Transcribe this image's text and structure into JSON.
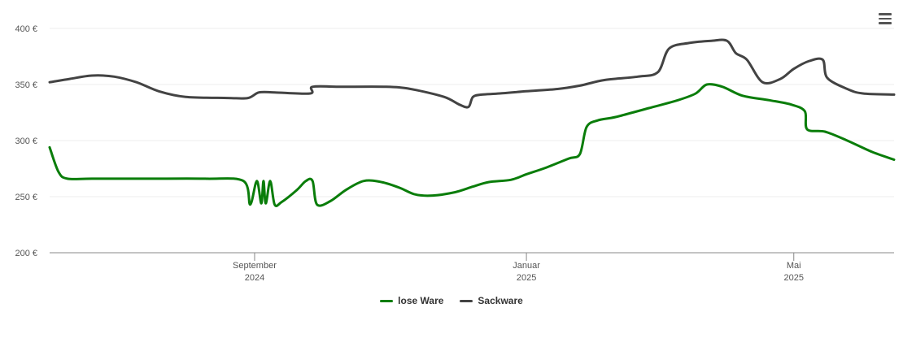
{
  "chart_data": {
    "type": "line",
    "title": "",
    "xlabel": "",
    "ylabel": "",
    "ylim": [
      200,
      400
    ],
    "y_ticks": [
      "200 €",
      "250 €",
      "300 €",
      "350 €",
      "400 €"
    ],
    "y_tick_values": [
      200,
      250,
      300,
      350,
      400
    ],
    "x_range": [
      "2024-06-01",
      "2025-06-15"
    ],
    "x_ticks": [
      {
        "date": "2024-09-01",
        "month": "September",
        "year": "2024"
      },
      {
        "date": "2025-01-01",
        "month": "Januar",
        "year": "2025"
      },
      {
        "date": "2025-05-01",
        "month": "Mai",
        "year": "2025"
      }
    ],
    "grid": true,
    "legend_position": "bottom-center",
    "series": [
      {
        "name": "lose Ware",
        "color": "#0a7d0a",
        "points": [
          [
            "2024-06-01",
            294
          ],
          [
            "2024-06-05",
            272
          ],
          [
            "2024-06-09",
            266
          ],
          [
            "2024-06-20",
            266
          ],
          [
            "2024-07-15",
            266
          ],
          [
            "2024-08-10",
            266
          ],
          [
            "2024-08-27",
            264
          ],
          [
            "2024-08-30",
            243
          ],
          [
            "2024-09-02",
            264
          ],
          [
            "2024-09-04",
            244
          ],
          [
            "2024-09-05",
            264
          ],
          [
            "2024-09-06",
            244
          ],
          [
            "2024-09-08",
            264
          ],
          [
            "2024-09-10",
            243
          ],
          [
            "2024-09-13",
            245
          ],
          [
            "2024-09-20",
            256
          ],
          [
            "2024-09-24",
            264
          ],
          [
            "2024-09-27",
            264
          ],
          [
            "2024-09-29",
            243
          ],
          [
            "2024-10-05",
            246
          ],
          [
            "2024-10-12",
            256
          ],
          [
            "2024-10-20",
            264
          ],
          [
            "2024-10-28",
            263
          ],
          [
            "2024-11-05",
            258
          ],
          [
            "2024-11-12",
            252
          ],
          [
            "2024-11-20",
            251
          ],
          [
            "2024-11-30",
            254
          ],
          [
            "2024-12-08",
            259
          ],
          [
            "2024-12-15",
            263
          ],
          [
            "2024-12-25",
            265
          ],
          [
            "2025-01-01",
            270
          ],
          [
            "2025-01-10",
            276
          ],
          [
            "2025-01-20",
            284
          ],
          [
            "2025-01-25",
            288
          ],
          [
            "2025-01-28",
            312
          ],
          [
            "2025-02-02",
            318
          ],
          [
            "2025-02-10",
            321
          ],
          [
            "2025-02-25",
            329
          ],
          [
            "2025-03-10",
            336
          ],
          [
            "2025-03-18",
            342
          ],
          [
            "2025-03-23",
            350
          ],
          [
            "2025-03-30",
            348
          ],
          [
            "2025-04-08",
            340
          ],
          [
            "2025-04-20",
            336
          ],
          [
            "2025-04-30",
            332
          ],
          [
            "2025-05-06",
            326
          ],
          [
            "2025-05-07",
            310
          ],
          [
            "2025-05-15",
            308
          ],
          [
            "2025-05-25",
            300
          ],
          [
            "2025-06-05",
            290
          ],
          [
            "2025-06-15",
            283
          ]
        ]
      },
      {
        "name": "Sackware",
        "color": "#434343",
        "points": [
          [
            "2024-06-01",
            352
          ],
          [
            "2024-06-10",
            355
          ],
          [
            "2024-06-20",
            358
          ],
          [
            "2024-06-30",
            357
          ],
          [
            "2024-07-10",
            352
          ],
          [
            "2024-07-20",
            344
          ],
          [
            "2024-08-01",
            339
          ],
          [
            "2024-08-20",
            338
          ],
          [
            "2024-08-29",
            338
          ],
          [
            "2024-09-03",
            343
          ],
          [
            "2024-09-10",
            343
          ],
          [
            "2024-09-26",
            342
          ],
          [
            "2024-09-27",
            348
          ],
          [
            "2024-10-10",
            348
          ],
          [
            "2024-10-30",
            348
          ],
          [
            "2024-11-10",
            346
          ],
          [
            "2024-11-25",
            339
          ],
          [
            "2024-12-02",
            332
          ],
          [
            "2024-12-06",
            330
          ],
          [
            "2024-12-08",
            339
          ],
          [
            "2024-12-12",
            341
          ],
          [
            "2024-12-20",
            342
          ],
          [
            "2025-01-01",
            344
          ],
          [
            "2025-01-15",
            346
          ],
          [
            "2025-01-25",
            349
          ],
          [
            "2025-02-05",
            354
          ],
          [
            "2025-02-20",
            357
          ],
          [
            "2025-03-01",
            361
          ],
          [
            "2025-03-06",
            382
          ],
          [
            "2025-03-15",
            387
          ],
          [
            "2025-03-25",
            389
          ],
          [
            "2025-04-01",
            389
          ],
          [
            "2025-04-05",
            378
          ],
          [
            "2025-04-10",
            372
          ],
          [
            "2025-04-17",
            352
          ],
          [
            "2025-04-25",
            355
          ],
          [
            "2025-05-01",
            364
          ],
          [
            "2025-05-08",
            371
          ],
          [
            "2025-05-14",
            372
          ],
          [
            "2025-05-16",
            356
          ],
          [
            "2025-05-25",
            346
          ],
          [
            "2025-06-01",
            342
          ],
          [
            "2025-06-15",
            341
          ]
        ]
      }
    ]
  },
  "ui": {
    "menu_icon": "hamburger-menu-icon"
  }
}
